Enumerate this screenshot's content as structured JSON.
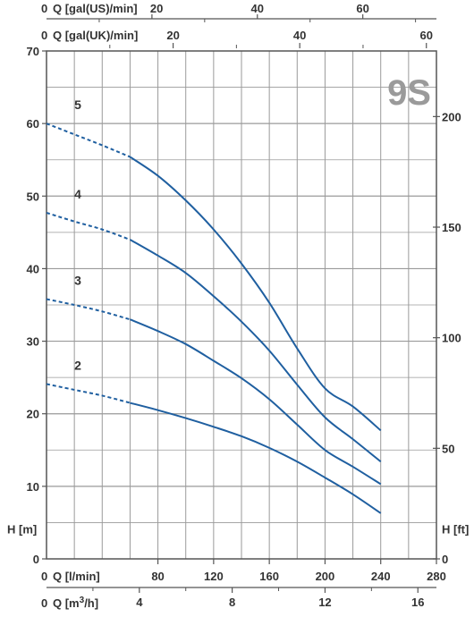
{
  "chart_data": {
    "type": "line",
    "model_label": "9S",
    "x_axis": {
      "label": "Q [l/min]",
      "zero_label": "0",
      "range": [
        0,
        280
      ],
      "ticks": [
        80,
        120,
        160,
        200,
        240,
        280
      ]
    },
    "x_axis_m3h": {
      "label": "Q [m³/h]",
      "label_base": "Q [m",
      "label_sup": "3",
      "label_tail": "/h]",
      "zero_label": "0",
      "ticks": [
        4,
        8,
        12,
        16
      ],
      "minor_ticks": [
        2,
        6,
        10,
        14
      ]
    },
    "x_axis_gal_us": {
      "label": "Q [gal(US)/min]",
      "zero_label": "0",
      "ticks": [
        20,
        40,
        60
      ],
      "minor_ticks": [
        10,
        30,
        50,
        70
      ]
    },
    "x_axis_gal_uk": {
      "label": "Q [gal(UK)/min]",
      "zero_label": "0",
      "ticks": [
        20,
        40,
        60
      ],
      "minor_ticks": [
        10,
        30,
        50
      ]
    },
    "y_axis_left": {
      "label": "H [m]",
      "range": [
        0,
        70
      ],
      "ticks": [
        0,
        10,
        20,
        30,
        40,
        50,
        60,
        70
      ]
    },
    "y_axis_right": {
      "label": "H [ft]",
      "ticks": [
        0,
        50,
        100,
        150,
        200
      ]
    },
    "grid": true,
    "colors": {
      "curve": "#1f5fa0",
      "grid": "#9a9a9a",
      "axis": "#555555",
      "model_label": "#9a9a9a"
    },
    "series": [
      {
        "name": "2",
        "dashed": {
          "x": [
            0,
            20,
            40,
            60
          ],
          "y": [
            24.1,
            23.3,
            22.5,
            21.5
          ]
        },
        "solid": {
          "x": [
            60,
            80,
            100,
            120,
            140,
            160,
            180,
            200,
            220,
            240
          ],
          "y": [
            21.5,
            20.5,
            19.4,
            18.2,
            16.9,
            15.3,
            13.4,
            11.2,
            8.9,
            6.3
          ]
        }
      },
      {
        "name": "3",
        "dashed": {
          "x": [
            0,
            20,
            40,
            60
          ],
          "y": [
            35.8,
            35.0,
            34.1,
            33.0
          ]
        },
        "solid": {
          "x": [
            60,
            80,
            100,
            120,
            140,
            160,
            180,
            200,
            220,
            240
          ],
          "y": [
            33.0,
            31.4,
            29.6,
            27.3,
            24.9,
            22.0,
            18.5,
            15.0,
            12.7,
            10.3
          ]
        }
      },
      {
        "name": "4",
        "dashed": {
          "x": [
            0,
            20,
            40,
            60
          ],
          "y": [
            47.7,
            46.5,
            45.4,
            44.0
          ]
        },
        "solid": {
          "x": [
            60,
            80,
            100,
            120,
            140,
            160,
            180,
            200,
            220,
            240
          ],
          "y": [
            44.0,
            41.8,
            39.4,
            36.2,
            32.7,
            28.7,
            24.0,
            19.5,
            16.5,
            13.4
          ]
        }
      },
      {
        "name": "5",
        "dashed": {
          "x": [
            0,
            20,
            40,
            60
          ],
          "y": [
            60.0,
            58.5,
            57.0,
            55.4
          ]
        },
        "solid": {
          "x": [
            60,
            80,
            100,
            120,
            140,
            160,
            180,
            200,
            220,
            240
          ],
          "y": [
            55.4,
            52.8,
            49.4,
            45.4,
            40.7,
            35.3,
            29.0,
            23.5,
            21.0,
            17.7
          ]
        }
      }
    ]
  }
}
